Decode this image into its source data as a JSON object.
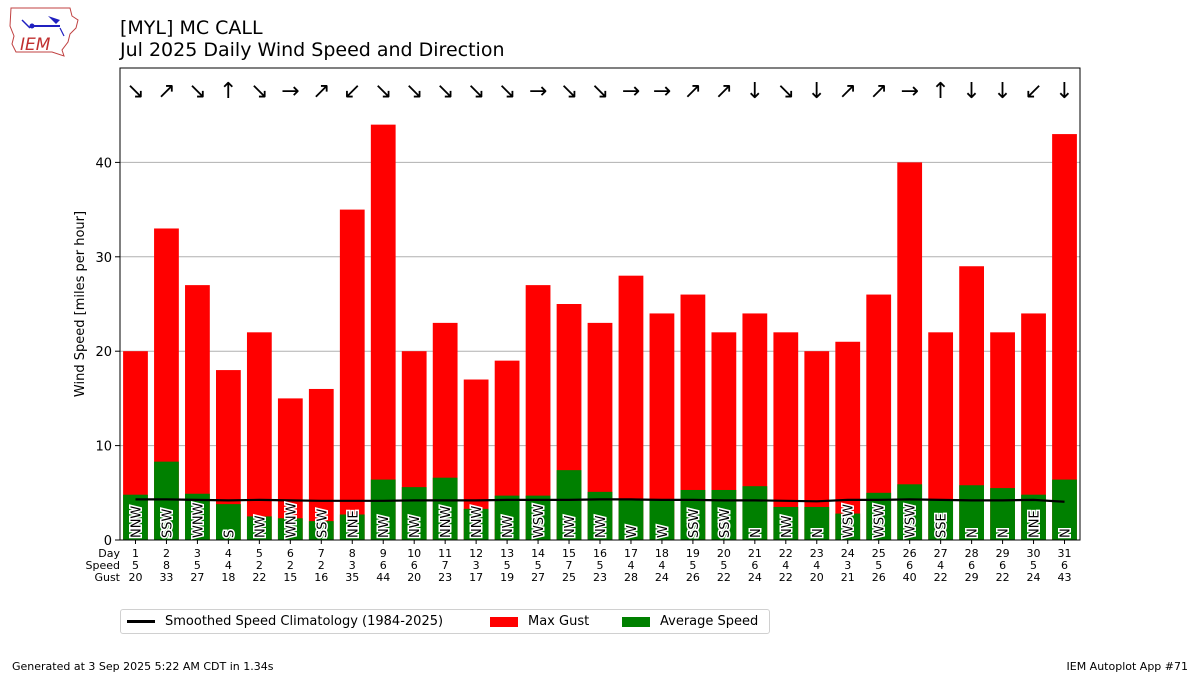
{
  "header": {
    "title_line1": "[MYL] MC CALL",
    "title_line2": "Jul 2025 Daily Wind Speed and Direction"
  },
  "logo": {
    "text": "IEM"
  },
  "footer": {
    "left": "Generated at 3 Sep 2025 5:22 AM CDT in 1.34s",
    "right": "IEM Autoplot App #71"
  },
  "legend": {
    "climatology": "Smoothed Speed Climatology (1984-2025)",
    "max_gust": "Max Gust",
    "avg_speed": "Average Speed"
  },
  "table_labels": {
    "day": "Day",
    "speed": "Speed",
    "gust": "Gust"
  },
  "colors": {
    "gust": "#ff0000",
    "avg": "#008000",
    "clim": "#000000",
    "grid": "#b0b0b0"
  },
  "chart_data": {
    "type": "bar",
    "ylabel": "Wind Speed [miles per hour]",
    "ylim": [
      0,
      50
    ],
    "yticks": [
      0,
      10,
      20,
      30,
      40
    ],
    "grid": true,
    "legend_position": "bottom-left",
    "days": [
      1,
      2,
      3,
      4,
      5,
      6,
      7,
      8,
      9,
      10,
      11,
      12,
      13,
      14,
      15,
      16,
      17,
      18,
      19,
      20,
      21,
      22,
      23,
      24,
      25,
      26,
      27,
      28,
      29,
      30,
      31
    ],
    "speed_labels": [
      5,
      8,
      5,
      4,
      2,
      2,
      2,
      3,
      6,
      6,
      7,
      3,
      5,
      5,
      7,
      5,
      4,
      4,
      5,
      5,
      6,
      4,
      4,
      3,
      5,
      6,
      4,
      6,
      6,
      5,
      6
    ],
    "avg_speed": [
      4.8,
      8.3,
      4.9,
      3.8,
      2.5,
      2.3,
      2.0,
      2.7,
      6.4,
      5.6,
      6.6,
      3.3,
      4.7,
      4.7,
      7.4,
      5.1,
      4.2,
      4.2,
      5.3,
      5.3,
      5.7,
      3.5,
      3.5,
      2.8,
      5.0,
      5.9,
      4.2,
      5.8,
      5.5,
      4.8,
      6.4
    ],
    "max_gust": [
      20,
      33,
      27,
      18,
      22,
      15,
      16,
      35,
      44,
      20,
      23,
      17,
      19,
      27,
      25,
      23,
      28,
      24,
      26,
      22,
      24,
      22,
      20,
      21,
      26,
      40,
      22,
      29,
      22,
      24,
      43
    ],
    "directions": [
      "NNW",
      "SSW",
      "WNW",
      "S",
      "NW",
      "WNW",
      "SSW",
      "NNE",
      "NW",
      "NW",
      "NNW",
      "NNW",
      "NW",
      "WSW",
      "NW",
      "NW",
      "W",
      "W",
      "SSW",
      "SSW",
      "N",
      "NW",
      "N",
      "WSW",
      "WSW",
      "WSW",
      "SSE",
      "N",
      "N",
      "NNE",
      "N"
    ],
    "arrows": [
      "↘",
      "↗",
      "↘",
      "↑",
      "↘",
      "→",
      "↗",
      "↙",
      "↘",
      "↘",
      "↘",
      "↘",
      "↘",
      "→",
      "↘",
      "↘",
      "→",
      "→",
      "↗",
      "↗",
      "↓",
      "↘",
      "↓",
      "↗",
      "↗",
      "→",
      "↑",
      "↓",
      "↓",
      "↙",
      "↓"
    ],
    "climatology": [
      4.3,
      4.3,
      4.25,
      4.2,
      4.25,
      4.2,
      4.15,
      4.15,
      4.15,
      4.2,
      4.2,
      4.2,
      4.25,
      4.25,
      4.25,
      4.3,
      4.3,
      4.25,
      4.25,
      4.2,
      4.2,
      4.15,
      4.1,
      4.25,
      4.25,
      4.3,
      4.25,
      4.2,
      4.2,
      4.25,
      4.05
    ]
  }
}
